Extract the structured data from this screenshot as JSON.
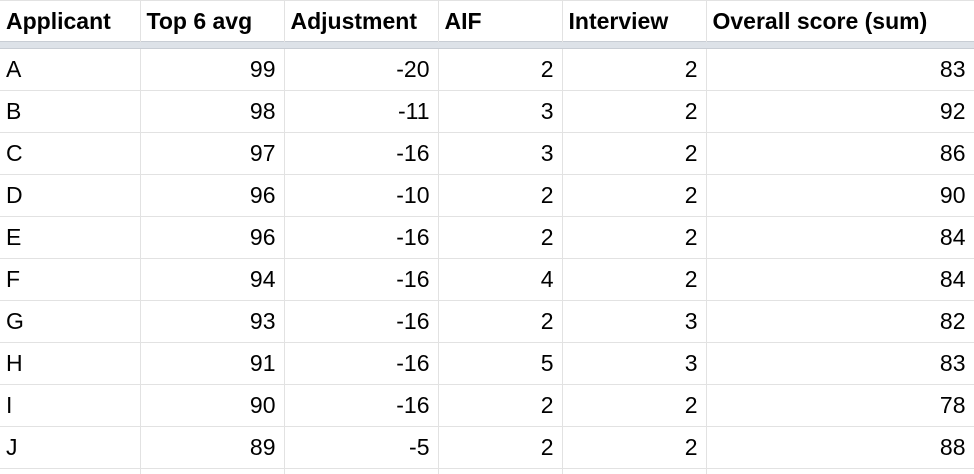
{
  "columns": [
    "Applicant",
    "Top 6 avg",
    "Adjustment",
    "AIF",
    "Interview",
    "Overall score (sum)"
  ],
  "rows": [
    [
      "A",
      "99",
      "-20",
      "2",
      "2",
      "83"
    ],
    [
      "B",
      "98",
      "-11",
      "3",
      "2",
      "92"
    ],
    [
      "C",
      "97",
      "-16",
      "3",
      "2",
      "86"
    ],
    [
      "D",
      "96",
      "-10",
      "2",
      "2",
      "90"
    ],
    [
      "E",
      "96",
      "-16",
      "2",
      "2",
      "84"
    ],
    [
      "F",
      "94",
      "-16",
      "4",
      "2",
      "84"
    ],
    [
      "G",
      "93",
      "-16",
      "2",
      "3",
      "82"
    ],
    [
      "H",
      "91",
      "-16",
      "5",
      "3",
      "83"
    ],
    [
      "I",
      "90",
      "-16",
      "2",
      "2",
      "78"
    ],
    [
      "J",
      "89",
      "-5",
      "2",
      "2",
      "88"
    ]
  ]
}
